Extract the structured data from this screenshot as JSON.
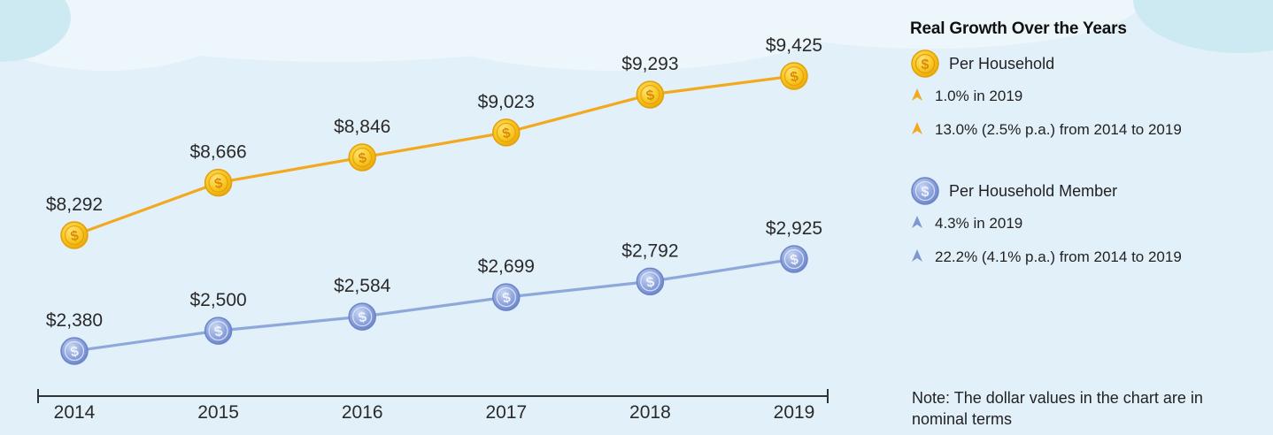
{
  "chart_data": {
    "type": "line",
    "categories": [
      "2014",
      "2015",
      "2016",
      "2017",
      "2018",
      "2019"
    ],
    "series": [
      {
        "name": "Per Household",
        "values": [
          8292,
          8666,
          8846,
          9023,
          9293,
          9425
        ],
        "labels": [
          "$8,292",
          "$8,666",
          "$8,846",
          "$9,023",
          "$9,293",
          "$9,425"
        ],
        "color": "#f2a91f",
        "marker_color": "#f5c518",
        "marker_icon": "gold-coin-icon"
      },
      {
        "name": "Per Household Member",
        "values": [
          2380,
          2500,
          2584,
          2699,
          2792,
          2925
        ],
        "labels": [
          "$2,380",
          "$2,500",
          "$2,584",
          "$2,699",
          "$2,792",
          "$2,925"
        ],
        "color": "#8fa8dc",
        "marker_color": "#7f97d4",
        "marker_icon": "silver-coin-icon"
      }
    ],
    "grid": false,
    "legend_position": "right"
  },
  "legend": {
    "title": "Real Growth Over the Years",
    "household": {
      "label": "Per Household",
      "stat_1": "1.0% in 2019",
      "stat_2": "13.0% (2.5% p.a.) from 2014 to 2019",
      "arrow_icon": "up-arrow-icon",
      "arrow_color": "#f2a91f"
    },
    "member": {
      "label": "Per Household Member",
      "stat_1": "4.3% in 2019",
      "stat_2": "22.2% (4.1% p.a.) from 2014 to 2019",
      "arrow_icon": "up-arrow-icon",
      "arrow_color": "#7f97d4"
    }
  },
  "note": "Note: The dollar values in the chart are in nominal terms"
}
